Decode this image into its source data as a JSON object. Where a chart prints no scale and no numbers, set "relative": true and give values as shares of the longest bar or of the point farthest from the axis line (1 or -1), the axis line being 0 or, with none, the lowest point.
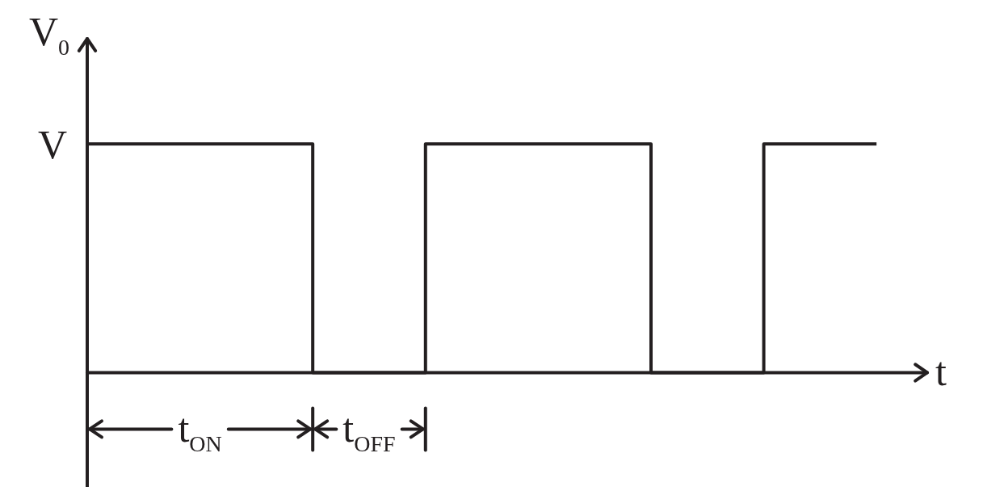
{
  "chart_data": {
    "type": "step",
    "relative": true,
    "categories": [
      null,
      null,
      null,
      null,
      null,
      null,
      null,
      null
    ],
    "ylabel": "V$_{0}$",
    "xlabel": "t",
    "series": [
      {
        "color": "#231f20",
        "values": [
          1,
          1,
          0,
          1,
          1,
          0,
          1,
          1
        ]
      }
    ],
    "annotations": [
      "V",
      "t$_{ON}$",
      "t$_{OFF}$"
    ]
  }
}
